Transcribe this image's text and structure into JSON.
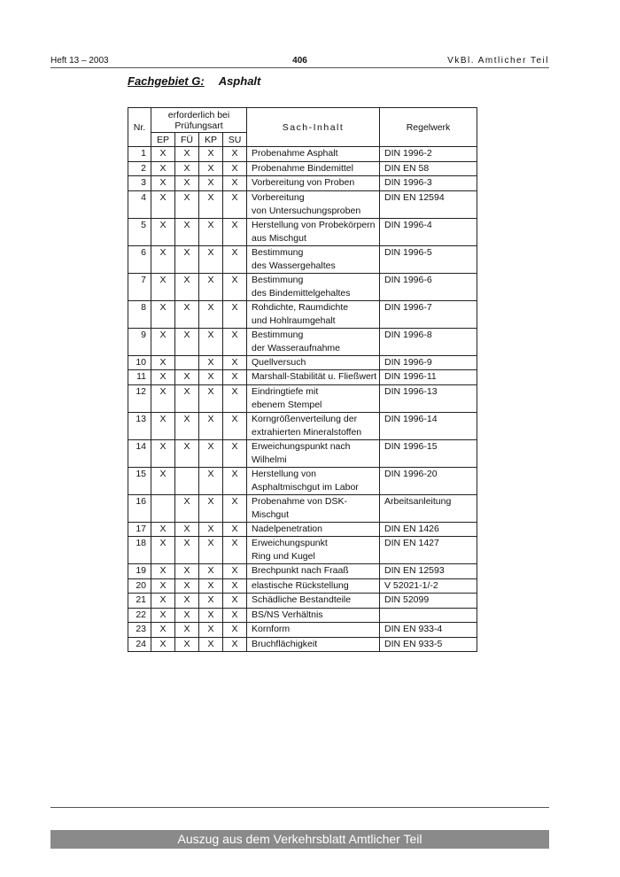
{
  "header": {
    "left": "Heft 13 – 2003",
    "page": "406",
    "right": "VkBl. Amtlicher Teil"
  },
  "section": {
    "label": "Fachgebiet G:",
    "title": "Asphalt"
  },
  "table": {
    "headers": {
      "nr": "Nr.",
      "group": "erforderlich bei Prüfungsart",
      "ep": "EP",
      "fu": "FÜ",
      "kp": "KP",
      "su": "SU",
      "sach": "Sach-Inhalt",
      "regel": "Regelwerk"
    },
    "rows": [
      {
        "nr": "1",
        "ep": "X",
        "fu": "X",
        "kp": "X",
        "su": "X",
        "sach": [
          "Probenahme Asphalt"
        ],
        "regel": "DIN 1996-2"
      },
      {
        "nr": "2",
        "ep": "X",
        "fu": "X",
        "kp": "X",
        "su": "X",
        "sach": [
          "Probenahme Bindemittel"
        ],
        "regel": "DIN EN 58"
      },
      {
        "nr": "3",
        "ep": "X",
        "fu": "X",
        "kp": "X",
        "su": "X",
        "sach": [
          "Vorbereitung von Proben"
        ],
        "regel": "DIN 1996-3"
      },
      {
        "nr": "4",
        "ep": "X",
        "fu": "X",
        "kp": "X",
        "su": "X",
        "sach": [
          "Vorbereitung",
          "von Untersuchungsproben"
        ],
        "regel": "DIN EN 12594"
      },
      {
        "nr": "5",
        "ep": "X",
        "fu": "X",
        "kp": "X",
        "su": "X",
        "sach": [
          "Herstellung von Probekörpern",
          "aus Mischgut"
        ],
        "regel": "DIN 1996-4"
      },
      {
        "nr": "6",
        "ep": "X",
        "fu": "X",
        "kp": "X",
        "su": "X",
        "sach": [
          "Bestimmung",
          "des Wassergehaltes"
        ],
        "regel": "DIN 1996-5"
      },
      {
        "nr": "7",
        "ep": "X",
        "fu": "X",
        "kp": "X",
        "su": "X",
        "sach": [
          "Bestimmung",
          "des Bindemittelgehaltes"
        ],
        "regel": "DIN 1996-6"
      },
      {
        "nr": "8",
        "ep": "X",
        "fu": "X",
        "kp": "X",
        "su": "X",
        "sach": [
          "Rohdichte, Raumdichte",
          "und Hohlraumgehalt"
        ],
        "regel": "DIN 1996-7"
      },
      {
        "nr": "9",
        "ep": "X",
        "fu": "X",
        "kp": "X",
        "su": "X",
        "sach": [
          "Bestimmung",
          "der Wasseraufnahme"
        ],
        "regel": "DIN 1996-8"
      },
      {
        "nr": "10",
        "ep": "X",
        "fu": "",
        "kp": "X",
        "su": "X",
        "sach": [
          "Quellversuch"
        ],
        "regel": "DIN 1996-9"
      },
      {
        "nr": "11",
        "ep": "X",
        "fu": "X",
        "kp": "X",
        "su": "X",
        "sach": [
          "Marshall-Stabilität u. Fließwert"
        ],
        "regel": "DIN 1996-11"
      },
      {
        "nr": "12",
        "ep": "X",
        "fu": "X",
        "kp": "X",
        "su": "X",
        "sach": [
          "Eindringtiefe mit",
          "ebenem Stempel"
        ],
        "regel": "DIN 1996-13"
      },
      {
        "nr": "13",
        "ep": "X",
        "fu": "X",
        "kp": "X",
        "su": "X",
        "sach": [
          "Korngrößenverteilung der",
          "extrahierten Mineralstoffen"
        ],
        "regel": "DIN 1996-14"
      },
      {
        "nr": "14",
        "ep": "X",
        "fu": "X",
        "kp": "X",
        "su": "X",
        "sach": [
          "Erweichungspunkt nach Wilhelmi"
        ],
        "regel": "DIN 1996-15"
      },
      {
        "nr": "15",
        "ep": "X",
        "fu": "",
        "kp": "X",
        "su": "X",
        "sach": [
          "Herstellung von",
          "Asphaltmischgut im Labor"
        ],
        "regel": "DIN 1996-20"
      },
      {
        "nr": "16",
        "ep": "",
        "fu": "X",
        "kp": "X",
        "su": "X",
        "sach": [
          "Probenahme von DSK-Mischgut"
        ],
        "regel": "Arbeitsanleitung"
      },
      {
        "nr": "17",
        "ep": "X",
        "fu": "X",
        "kp": "X",
        "su": "X",
        "sach": [
          "Nadelpenetration"
        ],
        "regel": "DIN EN 1426"
      },
      {
        "nr": "18",
        "ep": "X",
        "fu": "X",
        "kp": "X",
        "su": "X",
        "sach": [
          "Erweichungspunkt",
          "Ring und Kugel"
        ],
        "regel": "DIN EN 1427"
      },
      {
        "nr": "19",
        "ep": "X",
        "fu": "X",
        "kp": "X",
        "su": "X",
        "sach": [
          "Brechpunkt nach Fraaß"
        ],
        "regel": "DIN EN 12593"
      },
      {
        "nr": "20",
        "ep": "X",
        "fu": "X",
        "kp": "X",
        "su": "X",
        "sach": [
          "elastische Rückstellung"
        ],
        "regel": "V 52021-1/-2"
      },
      {
        "nr": "21",
        "ep": "X",
        "fu": "X",
        "kp": "X",
        "su": "X",
        "sach": [
          "Schädliche Bestandteile"
        ],
        "regel": "DIN 52099"
      },
      {
        "nr": "22",
        "ep": "X",
        "fu": "X",
        "kp": "X",
        "su": "X",
        "sach": [
          "BS/NS Verhältnis"
        ],
        "regel": ""
      },
      {
        "nr": "23",
        "ep": "X",
        "fu": "X",
        "kp": "X",
        "su": "X",
        "sach": [
          "Kornform"
        ],
        "regel": "DIN EN 933-4"
      },
      {
        "nr": "24",
        "ep": "X",
        "fu": "X",
        "kp": "X",
        "su": "X",
        "sach": [
          "Bruchflächigkeit"
        ],
        "regel": "DIN EN 933-5"
      }
    ]
  },
  "footer": {
    "text": "Auszug aus dem Verkehrsblatt Amtlicher Teil",
    "bar_color": "#8a8a8a"
  }
}
